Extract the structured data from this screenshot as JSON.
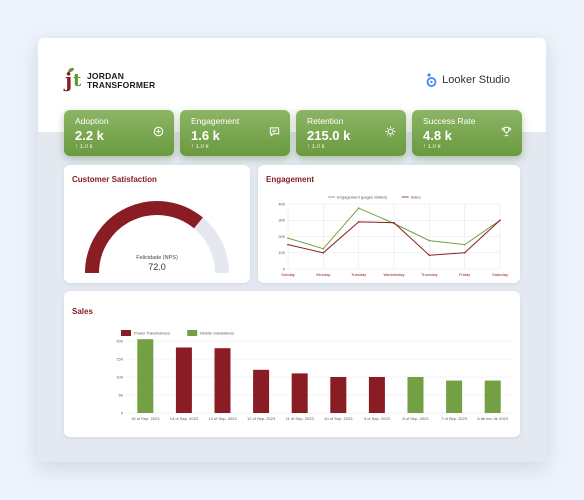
{
  "brand": {
    "line1": "JORDAN",
    "line2": "TRANSFORMER",
    "mark_j": "j",
    "mark_t": "t"
  },
  "platform": {
    "name": "Looker Studio"
  },
  "colors": {
    "maroon": "#8a1c24",
    "green": "#72a043",
    "olive": "#5d9a2c",
    "grid": "#e6e6e6"
  },
  "kpis": [
    {
      "label": "Adoption",
      "value": "2.2 k",
      "delta": "↑ 1.0 k",
      "icon": "plus-circle-icon"
    },
    {
      "label": "Engagement",
      "value": "1.6 k",
      "delta": "↑ 1.0 k",
      "icon": "chat-icon"
    },
    {
      "label": "Retention",
      "value": "215.0 k",
      "delta": "↑ 1.0 k",
      "icon": "sun-icon"
    },
    {
      "label": "Success Rate",
      "value": "4.8 k",
      "delta": "↑ 1.0 k",
      "icon": "trophy-icon"
    }
  ],
  "satisfaction": {
    "title": "Customer Satisfaction",
    "gauge_label": "Felicidade (NPS)",
    "gauge_value": "72.0",
    "fraction": 0.72
  },
  "engagement_chart": {
    "title": "Engagement"
  },
  "sales_chart": {
    "title": "Sales"
  },
  "chart_data": [
    {
      "type": "line",
      "title": "Engagement",
      "categories": [
        "Sunday",
        "Monday",
        "Tuesday",
        "Wednesday",
        "Thursday",
        "Friday",
        "Saturday"
      ],
      "series": [
        {
          "name": "Engagement (pages visited)",
          "color": "#72a043",
          "values": [
            190,
            125,
            375,
            280,
            175,
            150,
            300
          ]
        },
        {
          "name": "Sales",
          "color": "#8a1c24",
          "values": [
            150,
            100,
            290,
            285,
            85,
            100,
            300
          ]
        }
      ],
      "ylim": [
        0,
        400
      ],
      "yticks": [
        "0",
        "100",
        "200",
        "300",
        "400"
      ],
      "grid": true,
      "legend": "top"
    },
    {
      "type": "bar",
      "title": "Sales",
      "categories": [
        "15 of Sep. 2023",
        "14 of Sep. 2023",
        "13 of Sep. 2023",
        "12 of Sep. 2023",
        "11 of Sep. 2023",
        "10 of Sep. 2023",
        "9 of Sep. 2023",
        "8 of Sep. 2023",
        "7 of Sep. 2023",
        "6 de fev. de 2023"
      ],
      "series": [
        {
          "name": "Power Transformers",
          "color": "#8a1c24"
        },
        {
          "name": "Mobile Substations",
          "color": "#72a043"
        }
      ],
      "values": [
        205,
        182,
        180,
        120,
        110,
        100,
        100,
        100,
        90,
        90
      ],
      "bar_series": [
        1,
        0,
        0,
        0,
        0,
        0,
        0,
        1,
        1,
        1
      ],
      "ylim": [
        0,
        200
      ],
      "yticks": [
        "0",
        "50",
        "100",
        "150",
        "200"
      ],
      "grid": true,
      "legend": "top-left"
    }
  ]
}
